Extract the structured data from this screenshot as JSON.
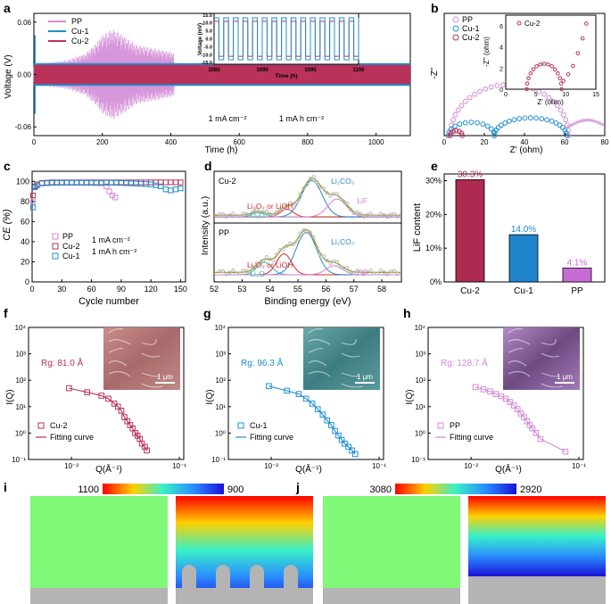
{
  "colors": {
    "pp": "#d38ad6",
    "cu1": "#1f8fd0",
    "cu2": "#b8325a",
    "xps_fit": "#9a9a1a",
    "xps_blue": "#2a86c8",
    "xps_red": "#d82a2a",
    "xps_pink": "#d77fd2",
    "xps_teal": "#28b8a8",
    "lif_cu2": "#ad2a50",
    "lif_cu1": "#1f84cc",
    "lif_pp": "#c76cd6",
    "sim_green": "#80f878",
    "sim_gray": "#b4b4b4"
  },
  "panels": {
    "a": "a",
    "b": "b",
    "c": "c",
    "d": "d",
    "e": "e",
    "f": "f",
    "g": "g",
    "h": "h",
    "i": "i",
    "j": "j"
  },
  "chart_data": [
    {
      "id": "a",
      "type": "line",
      "xlabel": "Time (h)",
      "ylabel": "Voltage (V)",
      "xlim": [
        0,
        1100
      ],
      "ylim": [
        -0.07,
        0.07
      ],
      "xticks": [
        "0",
        "200",
        "400",
        "600",
        "800",
        "1000"
      ],
      "yticks": [
        "0.06",
        "0.00",
        "-0.06"
      ],
      "legend": [
        "PP",
        "Cu-1",
        "Cu-2"
      ],
      "notes": [
        "1 mA cm⁻²",
        "1 mA h cm⁻²"
      ],
      "pp_envelope": {
        "x": [
          0,
          50,
          100,
          150,
          180,
          200,
          230,
          260,
          300,
          350,
          400,
          410
        ],
        "y": [
          0.012,
          0.014,
          0.017,
          0.024,
          0.035,
          0.045,
          0.052,
          0.045,
          0.034,
          0.03,
          0.026,
          0.024
        ]
      },
      "cu2_amplitude": 0.011,
      "cu1_amplitude": 0.013,
      "inset": {
        "xlabel": "Time (h)",
        "ylabel": "Voltage (mV)",
        "xticks": [
          "1085",
          "1090",
          "1095",
          "1100"
        ],
        "yticks": [
          "15.0",
          "10.0",
          "5.0",
          "0.0",
          "-5.0",
          "-10.0",
          "-15.0"
        ],
        "xlim": [
          1085,
          1100
        ],
        "ylim": [
          -16,
          16
        ],
        "cu1_level": 13.2,
        "cu2_level": 11.0
      }
    },
    {
      "id": "b",
      "type": "scatter",
      "xlabel": "Z' (ohm)",
      "ylabel": "-Z''",
      "xlim": [
        0,
        80
      ],
      "ylim": [
        0,
        55
      ],
      "xticks": [
        "0",
        "20",
        "40",
        "60",
        "80"
      ],
      "legend": [
        "PP",
        "Cu-1",
        "Cu-2"
      ],
      "series": [
        {
          "name": "PP",
          "arc": {
            "start": 3,
            "end": 62,
            "peak": 23
          },
          "tail_end": 80
        },
        {
          "name": "Cu-1",
          "arc": {
            "start": 2,
            "end": 25,
            "peak": 6
          },
          "tail": {
            "start": 25,
            "end": 61,
            "peak": 8
          }
        },
        {
          "name": "Cu-2",
          "arc": {
            "start": 3,
            "end": 9,
            "peak": 2.2
          }
        }
      ],
      "inset": {
        "xlabel": "Z' (ohm)",
        "ylabel": "-Z'' (ohm)",
        "xlim": [
          0,
          15
        ],
        "ylim": [
          0,
          7
        ],
        "xticks": [
          "0",
          "5",
          "10",
          "15"
        ],
        "yticks": [
          "0",
          "2",
          "4",
          "6"
        ],
        "legend": "Cu-2",
        "arc": {
          "start": 3.5,
          "end": 9.3,
          "peak": 2.4
        },
        "tail": {
          "x": [
            9.6,
            10.4,
            11.2,
            12,
            12.8,
            13.4
          ],
          "y": [
            0.8,
            1.4,
            2.2,
            3.4,
            4.8,
            6.2
          ]
        }
      }
    },
    {
      "id": "c",
      "type": "scatter",
      "xlabel": "Cycle number",
      "ylabel": "CE (%)",
      "xlim": [
        0,
        155
      ],
      "ylim": [
        0,
        110
      ],
      "xticks": [
        "0",
        "30",
        "60",
        "90",
        "120",
        "150"
      ],
      "yticks": [
        "0",
        "20",
        "40",
        "60",
        "80",
        "100"
      ],
      "legend": [
        "PP",
        "Cu-2",
        "Cu-1"
      ],
      "notes": [
        "1 mA cm⁻²",
        "1 mA h cm⁻²"
      ],
      "series": [
        {
          "name": "PP",
          "x": [
            1,
            5,
            10,
            20,
            30,
            40,
            50,
            60,
            70,
            75,
            78,
            81,
            84
          ],
          "y": [
            80,
            97,
            98,
            98.5,
            98.5,
            98.6,
            98.6,
            98.4,
            98,
            95,
            90,
            86,
            84
          ]
        },
        {
          "name": "Cu-2",
          "x": [
            1,
            3,
            5,
            10,
            20,
            30,
            40,
            50,
            60,
            70,
            80,
            90,
            100,
            110,
            120,
            130,
            140,
            150
          ],
          "y": [
            86,
            95,
            97,
            98.5,
            99,
            99,
            99,
            99,
            99,
            99,
            99,
            99,
            99,
            99,
            99,
            99,
            99,
            99
          ]
        },
        {
          "name": "Cu-1",
          "x": [
            1,
            3,
            5,
            10,
            20,
            30,
            40,
            50,
            60,
            70,
            80,
            90,
            100,
            110,
            120,
            130,
            135,
            140,
            145,
            150
          ],
          "y": [
            74,
            94,
            96,
            98,
            98.5,
            98.6,
            98.6,
            98.6,
            98.6,
            98.6,
            98.6,
            98.4,
            98,
            97.5,
            97,
            95,
            92,
            91,
            92,
            93
          ]
        }
      ]
    },
    {
      "id": "d",
      "type": "line",
      "xlabel": "Binding energy (eV)",
      "ylabel": "Intensity (a.u.)",
      "xlim": [
        52,
        58.7
      ],
      "xticks": [
        "52",
        "53",
        "54",
        "55",
        "56",
        "57",
        "58"
      ],
      "subpanels": [
        {
          "name": "Cu-2",
          "peaks": [
            {
              "label": "Li₂O",
              "center": 53.6,
              "height": 0.1,
              "width": 0.35
            },
            {
              "label": "Li₂O₂ or LiOH",
              "center": 54.6,
              "height": 0.18,
              "width": 0.35
            },
            {
              "label": "Li₂CO₃",
              "center": 55.5,
              "height": 0.85,
              "width": 0.55
            },
            {
              "label": "LiF",
              "center": 56.4,
              "height": 0.42,
              "width": 0.5
            }
          ],
          "baseline": 0.1
        },
        {
          "name": "PP",
          "peaks": [
            {
              "label": "Li₂O",
              "center": 53.8,
              "height": 0.25,
              "width": 0.4
            },
            {
              "label": "Li₂O₂ or LiOH",
              "center": 54.5,
              "height": 0.42,
              "width": 0.4
            },
            {
              "label": "Li₂CO₃",
              "center": 55.3,
              "height": 0.85,
              "width": 0.55
            },
            {
              "label": "LiF",
              "center": 56.3,
              "height": 0.18,
              "width": 0.45
            }
          ],
          "baseline": 0.12
        }
      ]
    },
    {
      "id": "e",
      "type": "bar",
      "ylabel": "LiF content",
      "categories": [
        "Cu-2",
        "Cu-1",
        "PP"
      ],
      "values": [
        30.3,
        14.0,
        4.1
      ],
      "labels": [
        "30.3%",
        "14.0%",
        "4.1%"
      ],
      "ylim": [
        0,
        32
      ],
      "yticks": [
        "0%",
        "10%",
        "20%",
        "30%"
      ]
    },
    {
      "id": "f",
      "type": "scatter",
      "scale": "log",
      "xlabel": "Q(Å⁻¹)",
      "ylabel": "I(Q)",
      "xlim": [
        0.004,
        0.11
      ],
      "ylim": [
        0.1,
        10000
      ],
      "yticks": [
        "10⁴",
        "10³",
        "10²",
        "10¹",
        "10⁰",
        "10⁻¹"
      ],
      "xticks": [
        "10⁻²",
        "10⁻¹"
      ],
      "rg": "Rg: 81.0 Å",
      "legend": [
        "Cu-2",
        "Fitting curve"
      ],
      "scale_bar": "1 μm",
      "series": [
        {
          "name": "Cu-2",
          "x": [
            0.0095,
            0.014,
            0.019,
            0.022,
            0.025,
            0.027,
            0.029,
            0.031,
            0.033,
            0.035,
            0.037,
            0.039,
            0.041,
            0.043,
            0.045,
            0.048,
            0.05
          ],
          "y": [
            50,
            35,
            26,
            20,
            13,
            10,
            7,
            4,
            2.8,
            2,
            1.5,
            1,
            0.8,
            0.6,
            0.4,
            0.3,
            0.22
          ]
        }
      ]
    },
    {
      "id": "g",
      "type": "scatter",
      "scale": "log",
      "xlabel": "Q(Å⁻¹)",
      "ylabel": "I(Q)",
      "xlim": [
        0.004,
        0.11
      ],
      "ylim": [
        0.1,
        10000
      ],
      "yticks": [
        "10⁴",
        "10³",
        "10²",
        "10¹",
        "10⁰",
        "10⁻¹"
      ],
      "xticks": [
        "10⁻²",
        "10⁻¹"
      ],
      "rg": "Rg: 96.3 Å",
      "legend": [
        "Cu-1",
        "Fitting curve"
      ],
      "scale_bar": "1 μm",
      "series": [
        {
          "name": "Cu-1",
          "x": [
            0.0095,
            0.014,
            0.018,
            0.021,
            0.024,
            0.027,
            0.03,
            0.033,
            0.036,
            0.039,
            0.042,
            0.045,
            0.048,
            0.052,
            0.056,
            0.06
          ],
          "y": [
            60,
            40,
            30,
            20,
            13,
            8,
            5,
            3,
            2,
            1.2,
            0.8,
            0.55,
            0.4,
            0.3,
            0.22,
            0.16
          ]
        }
      ]
    },
    {
      "id": "h",
      "type": "scatter",
      "scale": "log",
      "xlabel": "Q(Å⁻¹)",
      "ylabel": "I(Q)",
      "xlim": [
        0.004,
        0.11
      ],
      "ylim": [
        0.1,
        10000
      ],
      "yticks": [
        "10⁴",
        "10³",
        "10²",
        "10¹",
        "10⁰",
        "10⁻¹"
      ],
      "xticks": [
        "10⁻²",
        "10⁻¹"
      ],
      "rg": "Rg: 128.7 Å",
      "legend": [
        "PP",
        "Fitting curve"
      ],
      "scale_bar": "1 μm",
      "series": [
        {
          "name": "PP",
          "x": [
            0.011,
            0.013,
            0.015,
            0.017,
            0.019,
            0.021,
            0.023,
            0.025,
            0.027,
            0.029,
            0.031,
            0.033,
            0.035,
            0.037,
            0.04,
            0.044,
            0.075
          ],
          "y": [
            55,
            45,
            38,
            30,
            25,
            20,
            15,
            11,
            8,
            5.5,
            4,
            2.8,
            2,
            1.5,
            1,
            0.6,
            0.2
          ]
        }
      ]
    },
    {
      "id": "i",
      "type": "heatmap",
      "scale_min": "1100",
      "scale_max": "900"
    },
    {
      "id": "j",
      "type": "heatmap",
      "scale_min": "3080",
      "scale_max": "2920"
    }
  ]
}
